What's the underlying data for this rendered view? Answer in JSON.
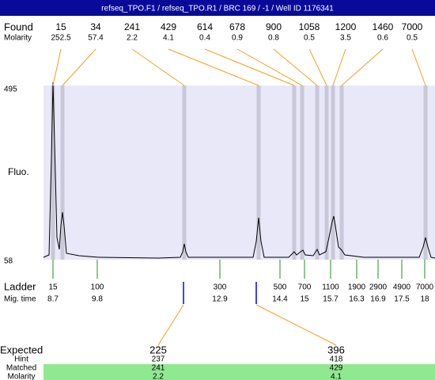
{
  "header": {
    "title": "refseq_TPO.F1 / refseq_TPO.R1 / BRC 169 / -1 / Well ID 1176341"
  },
  "found": {
    "label": "Found",
    "molarity_label": "Molarity",
    "peaks": [
      {
        "size": 15,
        "molarity": 252.5
      },
      {
        "size": 34,
        "molarity": 57.4
      },
      {
        "size": 241,
        "molarity": 2.2
      },
      {
        "size": 429,
        "molarity": 4.1
      },
      {
        "size": 614,
        "molarity": 0.4
      },
      {
        "size": 678,
        "molarity": 0.9
      },
      {
        "size": 900,
        "molarity": 0.8
      },
      {
        "size": 1058,
        "molarity": 0.5
      },
      {
        "size": 1200,
        "molarity": 3.5
      },
      {
        "size": 1460,
        "molarity": 0.6
      },
      {
        "size": 7000,
        "molarity": 0.5
      }
    ]
  },
  "y_axis": {
    "title": "Fluo.",
    "max": 495,
    "min": 58
  },
  "ladder": {
    "label": "Ladder",
    "time_label": "Mig. time",
    "peaks": [
      {
        "size": 15,
        "time": 8.7
      },
      {
        "size": 100,
        "time": 9.8
      },
      {
        "size": 300,
        "time": 12.9
      },
      {
        "size": 500,
        "time": 14.4
      },
      {
        "size": 700,
        "time": 15
      },
      {
        "size": 1100,
        "time": 15.7
      },
      {
        "size": 1900,
        "time": 16.3
      },
      {
        "size": 2900,
        "time": 16.9
      },
      {
        "size": 4900,
        "time": 17.5
      },
      {
        "size": 7000,
        "time": 18
      }
    ]
  },
  "expected": {
    "label": "Expected",
    "hint_label": "Hint",
    "matched_label": "Matched",
    "molarity_label": "Molarity",
    "items": [
      {
        "size": 225,
        "hint": 237,
        "matched": 241,
        "molarity": 2.2
      },
      {
        "size": 396,
        "hint": 418,
        "matched": 429,
        "molarity": 4.1
      }
    ]
  }
}
